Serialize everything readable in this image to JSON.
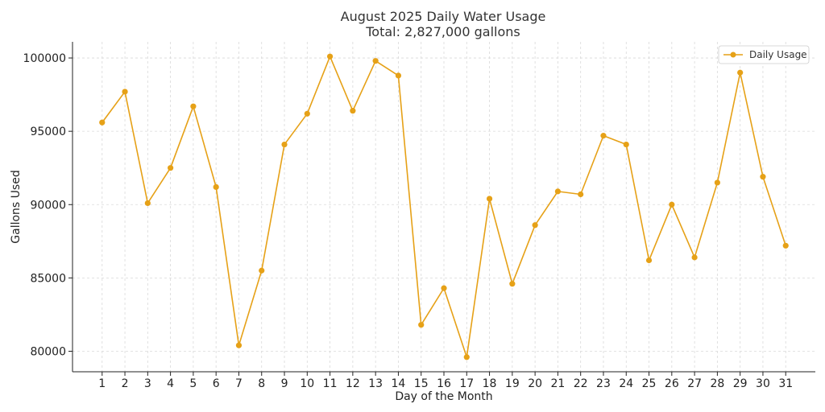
{
  "chart_data": {
    "type": "line",
    "title": "August 2025 Daily Water Usage",
    "subtitle": "Total: 2,827,000 gallons",
    "xlabel": "Day of the Month",
    "ylabel": "Gallons Used",
    "x": [
      1,
      2,
      3,
      4,
      5,
      6,
      7,
      8,
      9,
      10,
      11,
      12,
      13,
      14,
      15,
      16,
      17,
      18,
      19,
      20,
      21,
      22,
      23,
      24,
      25,
      26,
      27,
      28,
      29,
      30,
      31
    ],
    "series": [
      {
        "name": "Daily Usage",
        "color": "#e6a117",
        "values": [
          95600,
          97700,
          90100,
          92500,
          96700,
          91200,
          80400,
          85500,
          94100,
          96200,
          100100,
          96400,
          99800,
          98800,
          81800,
          84300,
          79600,
          90400,
          84600,
          88600,
          90900,
          90700,
          94700,
          94100,
          86200,
          90000,
          86400,
          91500,
          99000,
          91900,
          87200
        ]
      }
    ],
    "xlim": [
      -0.3,
      32.3
    ],
    "ylim": [
      78600,
      101100
    ],
    "yticks": [
      80000,
      85000,
      90000,
      95000,
      100000
    ],
    "grid": true,
    "legend": "top-right"
  }
}
